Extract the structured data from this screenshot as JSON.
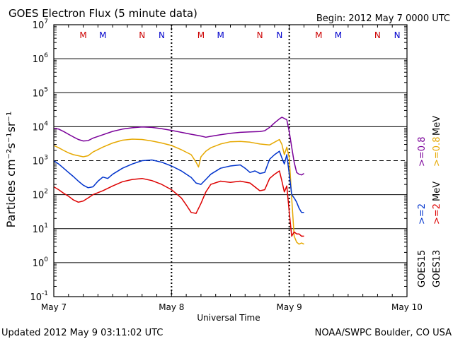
{
  "chart_data": {
    "type": "line",
    "title": "GOES Electron Flux (5 minute data)",
    "begin_label": "Begin: 2012 May 7 0000 UTC",
    "xlabel": "Universal Time",
    "ylabel": "Particles cm⁻²s⁻¹sr⁻¹",
    "y_scale": "log",
    "ylim": [
      0.1,
      10000000
    ],
    "y_ticks": [
      {
        "base": "10",
        "exp": "-1",
        "value": 0.1
      },
      {
        "base": "10",
        "exp": "0",
        "value": 1
      },
      {
        "base": "10",
        "exp": "1",
        "value": 10
      },
      {
        "base": "10",
        "exp": "2",
        "value": 100
      },
      {
        "base": "10",
        "exp": "3",
        "value": 1000
      },
      {
        "base": "10",
        "exp": "4",
        "value": 10000
      },
      {
        "base": "10",
        "exp": "5",
        "value": 100000
      },
      {
        "base": "10",
        "exp": "6",
        "value": 1000000
      },
      {
        "base": "10",
        "exp": "7",
        "value": 10000000
      }
    ],
    "xlim": [
      "2012-05-07 00:00",
      "2012-05-10 00:00"
    ],
    "x_ticks": [
      {
        "label": "May 7",
        "value": "2012-05-07 00:00"
      },
      {
        "label": "May 8",
        "value": "2012-05-08 00:00"
      },
      {
        "label": "May 9",
        "value": "2012-05-09 00:00"
      },
      {
        "label": "May 10",
        "value": "2012-05-10 00:00"
      }
    ],
    "grid": "horizontal",
    "threshold_line": {
      "value": 1000,
      "style": "dashed"
    },
    "markers": [
      {
        "label": "M",
        "time": "2012-05-07 06:00",
        "color": "#cc0000"
      },
      {
        "label": "M",
        "time": "2012-05-07 10:00",
        "color": "#0000cc"
      },
      {
        "label": "N",
        "time": "2012-05-07 18:00",
        "color": "#cc0000"
      },
      {
        "label": "N",
        "time": "2012-05-07 22:00",
        "color": "#0000cc"
      },
      {
        "label": "M",
        "time": "2012-05-08 06:00",
        "color": "#cc0000"
      },
      {
        "label": "M",
        "time": "2012-05-08 10:00",
        "color": "#0000cc"
      },
      {
        "label": "N",
        "time": "2012-05-08 18:00",
        "color": "#cc0000"
      },
      {
        "label": "N",
        "time": "2012-05-08 22:00",
        "color": "#0000cc"
      },
      {
        "label": "M",
        "time": "2012-05-09 06:00",
        "color": "#cc0000"
      },
      {
        "label": "M",
        "time": "2012-05-09 10:00",
        "color": "#0000cc"
      },
      {
        "label": "N",
        "time": "2012-05-09 18:00",
        "color": "#cc0000"
      },
      {
        "label": "N",
        "time": "2012-05-09 22:00",
        "color": "#0000cc"
      }
    ],
    "series": [
      {
        "name": ">=0.8 MeV",
        "satellite": "GOES15",
        "color": "#7a0099",
        "points": [
          [
            "2012-05-07 00:00",
            9000
          ],
          [
            "2012-05-07 01:00",
            8500
          ],
          [
            "2012-05-07 02:00",
            7200
          ],
          [
            "2012-05-07 03:00",
            6000
          ],
          [
            "2012-05-07 04:00",
            5000
          ],
          [
            "2012-05-07 05:00",
            4200
          ],
          [
            "2012-05-07 06:00",
            3800
          ],
          [
            "2012-05-07 07:00",
            3900
          ],
          [
            "2012-05-07 08:00",
            4600
          ],
          [
            "2012-05-07 10:00",
            5800
          ],
          [
            "2012-05-07 12:00",
            7300
          ],
          [
            "2012-05-07 14:00",
            8500
          ],
          [
            "2012-05-07 16:00",
            9300
          ],
          [
            "2012-05-07 18:00",
            9800
          ],
          [
            "2012-05-07 20:00",
            9500
          ],
          [
            "2012-05-07 22:00",
            8700
          ],
          [
            "2012-05-08 00:00",
            7800
          ],
          [
            "2012-05-08 02:00",
            6800
          ],
          [
            "2012-05-08 04:00",
            6000
          ],
          [
            "2012-05-08 06:00",
            5300
          ],
          [
            "2012-05-08 07:00",
            4900
          ],
          [
            "2012-05-08 08:00",
            5200
          ],
          [
            "2012-05-08 10:00",
            5800
          ],
          [
            "2012-05-08 12:00",
            6400
          ],
          [
            "2012-05-08 14:00",
            6800
          ],
          [
            "2012-05-08 16:00",
            7000
          ],
          [
            "2012-05-08 18:00",
            7200
          ],
          [
            "2012-05-08 19:00",
            7600
          ],
          [
            "2012-05-08 20:00",
            9500
          ],
          [
            "2012-05-08 21:00",
            13000
          ],
          [
            "2012-05-08 22:00",
            17000
          ],
          [
            "2012-05-08 22:30",
            19000
          ],
          [
            "2012-05-08 23:30",
            16000
          ],
          [
            "2012-05-09 00:00",
            7000
          ],
          [
            "2012-05-09 00:30",
            2500
          ],
          [
            "2012-05-09 01:00",
            900
          ],
          [
            "2012-05-09 01:30",
            450
          ],
          [
            "2012-05-09 02:00",
            400
          ],
          [
            "2012-05-09 02:30",
            380
          ],
          [
            "2012-05-09 03:00",
            420
          ]
        ]
      },
      {
        "name": ">=0.8 MeV",
        "satellite": "GOES13",
        "color": "#e6a800",
        "points": [
          [
            "2012-05-07 00:00",
            2800
          ],
          [
            "2012-05-07 01:00",
            2400
          ],
          [
            "2012-05-07 02:00",
            2000
          ],
          [
            "2012-05-07 03:00",
            1700
          ],
          [
            "2012-05-07 04:00",
            1500
          ],
          [
            "2012-05-07 05:00",
            1400
          ],
          [
            "2012-05-07 06:00",
            1300
          ],
          [
            "2012-05-07 07:00",
            1400
          ],
          [
            "2012-05-07 08:00",
            1800
          ],
          [
            "2012-05-07 10:00",
            2500
          ],
          [
            "2012-05-07 12:00",
            3300
          ],
          [
            "2012-05-07 14:00",
            4000
          ],
          [
            "2012-05-07 16:00",
            4300
          ],
          [
            "2012-05-07 18:00",
            4200
          ],
          [
            "2012-05-07 20:00",
            3800
          ],
          [
            "2012-05-07 22:00",
            3300
          ],
          [
            "2012-05-08 00:00",
            2800
          ],
          [
            "2012-05-08 02:00",
            2100
          ],
          [
            "2012-05-08 04:00",
            1500
          ],
          [
            "2012-05-08 05:00",
            900
          ],
          [
            "2012-05-08 05:30",
            650
          ],
          [
            "2012-05-08 06:00",
            1300
          ],
          [
            "2012-05-08 07:00",
            1900
          ],
          [
            "2012-05-08 08:00",
            2400
          ],
          [
            "2012-05-08 10:00",
            3100
          ],
          [
            "2012-05-08 12:00",
            3600
          ],
          [
            "2012-05-08 14:00",
            3700
          ],
          [
            "2012-05-08 16:00",
            3500
          ],
          [
            "2012-05-08 18:00",
            3100
          ],
          [
            "2012-05-08 20:00",
            2900
          ],
          [
            "2012-05-08 21:00",
            3500
          ],
          [
            "2012-05-08 22:00",
            4200
          ],
          [
            "2012-05-08 22:30",
            3000
          ],
          [
            "2012-05-08 23:00",
            1500
          ],
          [
            "2012-05-08 23:30",
            2500
          ],
          [
            "2012-05-09 00:00",
            1200
          ],
          [
            "2012-05-09 00:30",
            80
          ],
          [
            "2012-05-09 01:00",
            6
          ],
          [
            "2012-05-09 01:30",
            4
          ],
          [
            "2012-05-09 02:00",
            3.5
          ],
          [
            "2012-05-09 02:30",
            3.8
          ],
          [
            "2012-05-09 03:00",
            3.5
          ]
        ]
      },
      {
        "name": ">=2 MeV",
        "satellite": "GOES15",
        "color": "#0033cc",
        "points": [
          [
            "2012-05-07 00:00",
            1000
          ],
          [
            "2012-05-07 01:00",
            800
          ],
          [
            "2012-05-07 02:00",
            600
          ],
          [
            "2012-05-07 03:00",
            450
          ],
          [
            "2012-05-07 04:00",
            340
          ],
          [
            "2012-05-07 05:00",
            250
          ],
          [
            "2012-05-07 06:00",
            190
          ],
          [
            "2012-05-07 07:00",
            160
          ],
          [
            "2012-05-07 08:00",
            170
          ],
          [
            "2012-05-07 09:00",
            250
          ],
          [
            "2012-05-07 10:00",
            330
          ],
          [
            "2012-05-07 11:00",
            300
          ],
          [
            "2012-05-07 12:00",
            400
          ],
          [
            "2012-05-07 14:00",
            600
          ],
          [
            "2012-05-07 16:00",
            800
          ],
          [
            "2012-05-07 18:00",
            1000
          ],
          [
            "2012-05-07 20:00",
            1050
          ],
          [
            "2012-05-07 22:00",
            900
          ],
          [
            "2012-05-08 00:00",
            700
          ],
          [
            "2012-05-08 02:00",
            500
          ],
          [
            "2012-05-08 04:00",
            320
          ],
          [
            "2012-05-08 05:00",
            220
          ],
          [
            "2012-05-08 06:00",
            200
          ],
          [
            "2012-05-08 07:00",
            280
          ],
          [
            "2012-05-08 08:00",
            400
          ],
          [
            "2012-05-08 10:00",
            600
          ],
          [
            "2012-05-08 12:00",
            700
          ],
          [
            "2012-05-08 14:00",
            750
          ],
          [
            "2012-05-08 15:00",
            600
          ],
          [
            "2012-05-08 16:00",
            450
          ],
          [
            "2012-05-08 17:00",
            500
          ],
          [
            "2012-05-08 18:00",
            420
          ],
          [
            "2012-05-08 19:00",
            450
          ],
          [
            "2012-05-08 20:00",
            1100
          ],
          [
            "2012-05-08 21:00",
            1500
          ],
          [
            "2012-05-08 22:00",
            1900
          ],
          [
            "2012-05-08 22:30",
            1200
          ],
          [
            "2012-05-08 23:00",
            800
          ],
          [
            "2012-05-08 23:30",
            1500
          ],
          [
            "2012-05-09 00:00",
            400
          ],
          [
            "2012-05-09 00:30",
            100
          ],
          [
            "2012-05-09 01:00",
            80
          ],
          [
            "2012-05-09 01:30",
            60
          ],
          [
            "2012-05-09 02:00",
            40
          ],
          [
            "2012-05-09 02:30",
            30
          ],
          [
            "2012-05-09 03:00",
            30
          ]
        ]
      },
      {
        "name": ">=2 MeV",
        "satellite": "GOES13",
        "color": "#dd0000",
        "points": [
          [
            "2012-05-07 00:00",
            170
          ],
          [
            "2012-05-07 01:00",
            140
          ],
          [
            "2012-05-07 02:00",
            110
          ],
          [
            "2012-05-07 03:00",
            90
          ],
          [
            "2012-05-07 04:00",
            70
          ],
          [
            "2012-05-07 05:00",
            60
          ],
          [
            "2012-05-07 06:00",
            65
          ],
          [
            "2012-05-07 07:00",
            80
          ],
          [
            "2012-05-07 08:00",
            100
          ],
          [
            "2012-05-07 10:00",
            130
          ],
          [
            "2012-05-07 12:00",
            180
          ],
          [
            "2012-05-07 14:00",
            240
          ],
          [
            "2012-05-07 16:00",
            280
          ],
          [
            "2012-05-07 18:00",
            300
          ],
          [
            "2012-05-07 20:00",
            260
          ],
          [
            "2012-05-07 22:00",
            200
          ],
          [
            "2012-05-08 00:00",
            140
          ],
          [
            "2012-05-08 02:00",
            80
          ],
          [
            "2012-05-08 03:00",
            50
          ],
          [
            "2012-05-08 04:00",
            30
          ],
          [
            "2012-05-08 05:00",
            28
          ],
          [
            "2012-05-08 06:00",
            55
          ],
          [
            "2012-05-08 07:00",
            120
          ],
          [
            "2012-05-08 08:00",
            200
          ],
          [
            "2012-05-08 10:00",
            250
          ],
          [
            "2012-05-08 12:00",
            230
          ],
          [
            "2012-05-08 14:00",
            250
          ],
          [
            "2012-05-08 16:00",
            220
          ],
          [
            "2012-05-08 18:00",
            130
          ],
          [
            "2012-05-08 19:00",
            140
          ],
          [
            "2012-05-08 20:00",
            300
          ],
          [
            "2012-05-08 21:00",
            400
          ],
          [
            "2012-05-08 22:00",
            500
          ],
          [
            "2012-05-08 22:30",
            250
          ],
          [
            "2012-05-08 23:00",
            120
          ],
          [
            "2012-05-08 23:30",
            180
          ],
          [
            "2012-05-09 00:00",
            30
          ],
          [
            "2012-05-09 00:30",
            6
          ],
          [
            "2012-05-09 01:00",
            8
          ],
          [
            "2012-05-09 01:30",
            7
          ],
          [
            "2012-05-09 02:00",
            7
          ],
          [
            "2012-05-09 02:30",
            6
          ],
          [
            "2012-05-09 03:00",
            6
          ]
        ]
      }
    ],
    "legend": {
      "placement": "right",
      "satellite_labels": [
        "GOES15",
        "GOES13"
      ],
      "energy_labels": [
        {
          "prefix": ">=2",
          "unit": "MeV",
          "colors": [
            "#0033cc",
            "#dd0000"
          ]
        },
        {
          "prefix": ">=0.8",
          "unit": "MeV",
          "colors": [
            "#7a0099",
            "#e6a800"
          ]
        }
      ]
    }
  },
  "footer": {
    "updated": "Updated 2012 May  9 03:11:02 UTC",
    "credit": "NOAA/SWPC Boulder, CO USA"
  }
}
